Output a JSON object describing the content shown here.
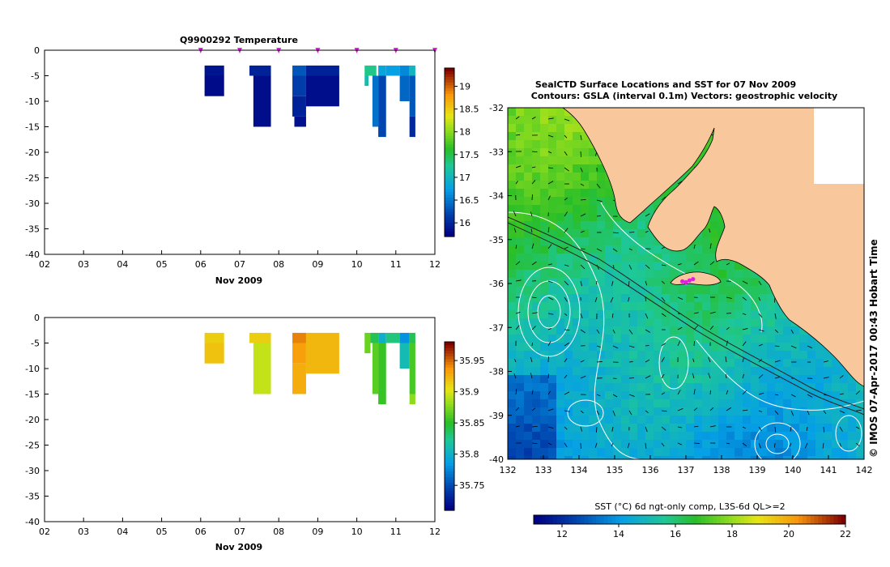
{
  "chart_data": [
    {
      "type": "heatmap",
      "title": "Q9900292  Temperature",
      "xlabel": "Nov 2009",
      "ylabel": "",
      "xlim": [
        2,
        12
      ],
      "ylim": [
        -40,
        0
      ],
      "x_ticks": [
        "02",
        "03",
        "04",
        "05",
        "06",
        "07",
        "08",
        "09",
        "10",
        "11",
        "12"
      ],
      "y_ticks": [
        0,
        -5,
        -10,
        -15,
        -20,
        -25,
        -30,
        -35,
        -40
      ],
      "profile_times": [
        6.0,
        7.0,
        8.0,
        9.0,
        10.0,
        11.0,
        12.0
      ],
      "colorbar": {
        "min": 15.7,
        "max": 19.4,
        "ticks": [
          16,
          16.5,
          17,
          17.5,
          18,
          18.5,
          19
        ]
      },
      "cells": [
        {
          "t0": 6.1,
          "t1": 6.6,
          "d0": -3,
          "d1": -5,
          "v": 15.85
        },
        {
          "t0": 6.1,
          "t1": 6.6,
          "d0": -5,
          "d1": -9,
          "v": 15.78
        },
        {
          "t0": 7.25,
          "t1": 7.8,
          "d0": -3,
          "d1": -5,
          "v": 15.95
        },
        {
          "t0": 7.35,
          "t1": 7.8,
          "d0": -5,
          "d1": -15,
          "v": 15.8
        },
        {
          "t0": 8.35,
          "t1": 8.7,
          "d0": -3,
          "d1": -5,
          "v": 16.3
        },
        {
          "t0": 8.35,
          "t1": 8.7,
          "d0": -5,
          "d1": -9,
          "v": 16.15
        },
        {
          "t0": 8.35,
          "t1": 8.7,
          "d0": -9,
          "d1": -13,
          "v": 15.95
        },
        {
          "t0": 8.4,
          "t1": 8.7,
          "d0": -13,
          "d1": -15,
          "v": 15.82
        },
        {
          "t0": 8.7,
          "t1": 9.55,
          "d0": -3,
          "d1": -5,
          "v": 15.95
        },
        {
          "t0": 8.7,
          "t1": 9.55,
          "d0": -5,
          "d1": -11,
          "v": 15.8
        },
        {
          "t0": 10.2,
          "t1": 10.5,
          "d0": -3,
          "d1": -5,
          "v": 17.3
        },
        {
          "t0": 10.2,
          "t1": 10.3,
          "d0": -5,
          "d1": -7,
          "v": 17.1
        },
        {
          "t0": 10.4,
          "t1": 10.55,
          "d0": -5,
          "d1": -15,
          "v": 16.45
        },
        {
          "t0": 10.55,
          "t1": 10.75,
          "d0": -3,
          "d1": -5,
          "v": 16.8
        },
        {
          "t0": 10.55,
          "t1": 10.75,
          "d0": -5,
          "d1": -17,
          "v": 16.2
        },
        {
          "t0": 10.75,
          "t1": 11.1,
          "d0": -3,
          "d1": -5,
          "v": 16.75
        },
        {
          "t0": 11.1,
          "t1": 11.35,
          "d0": -3,
          "d1": -5,
          "v": 16.6
        },
        {
          "t0": 11.1,
          "t1": 11.35,
          "d0": -5,
          "d1": -10,
          "v": 16.4
        },
        {
          "t0": 11.35,
          "t1": 11.5,
          "d0": -3,
          "d1": -5,
          "v": 17.0
        },
        {
          "t0": 11.35,
          "t1": 11.5,
          "d0": -5,
          "d1": -13,
          "v": 16.3
        },
        {
          "t0": 11.35,
          "t1": 11.5,
          "d0": -13,
          "d1": -17,
          "v": 16.0
        }
      ]
    },
    {
      "type": "heatmap",
      "title": "",
      "xlabel": "Nov 2009",
      "ylabel": "",
      "xlim": [
        2,
        12
      ],
      "ylim": [
        -40,
        0
      ],
      "x_ticks": [
        "02",
        "03",
        "04",
        "05",
        "06",
        "07",
        "08",
        "09",
        "10",
        "11",
        "12"
      ],
      "y_ticks": [
        0,
        -5,
        -10,
        -15,
        -20,
        -25,
        -30,
        -35,
        -40
      ],
      "colorbar": {
        "min": 35.71,
        "max": 35.98,
        "ticks": [
          35.75,
          35.8,
          35.85,
          35.9,
          35.95
        ]
      },
      "cells": [
        {
          "t0": 6.1,
          "t1": 6.6,
          "d0": -3,
          "d1": -5,
          "v": 35.915
        },
        {
          "t0": 6.1,
          "t1": 6.6,
          "d0": -5,
          "d1": -9,
          "v": 35.92
        },
        {
          "t0": 7.25,
          "t1": 7.8,
          "d0": -3,
          "d1": -5,
          "v": 35.915
        },
        {
          "t0": 7.35,
          "t1": 7.8,
          "d0": -5,
          "d1": -15,
          "v": 35.895
        },
        {
          "t0": 8.35,
          "t1": 8.7,
          "d0": -3,
          "d1": -5,
          "v": 35.945
        },
        {
          "t0": 8.35,
          "t1": 8.7,
          "d0": -5,
          "d1": -9,
          "v": 35.935
        },
        {
          "t0": 8.35,
          "t1": 8.7,
          "d0": -9,
          "d1": -15,
          "v": 35.93
        },
        {
          "t0": 8.7,
          "t1": 9.55,
          "d0": -3,
          "d1": -11,
          "v": 35.925
        },
        {
          "t0": 10.2,
          "t1": 10.35,
          "d0": -3,
          "d1": -7,
          "v": 35.87
        },
        {
          "t0": 10.35,
          "t1": 10.55,
          "d0": -3,
          "d1": -5,
          "v": 35.84
        },
        {
          "t0": 10.4,
          "t1": 10.55,
          "d0": -5,
          "d1": -15,
          "v": 35.865
        },
        {
          "t0": 10.55,
          "t1": 10.75,
          "d0": -3,
          "d1": -5,
          "v": 35.8
        },
        {
          "t0": 10.55,
          "t1": 10.75,
          "d0": -5,
          "d1": -17,
          "v": 35.855
        },
        {
          "t0": 10.75,
          "t1": 11.1,
          "d0": -3,
          "d1": -5,
          "v": 35.83
        },
        {
          "t0": 11.1,
          "t1": 11.35,
          "d0": -3,
          "d1": -5,
          "v": 35.78
        },
        {
          "t0": 11.1,
          "t1": 11.35,
          "d0": -5,
          "d1": -10,
          "v": 35.81
        },
        {
          "t0": 11.35,
          "t1": 11.5,
          "d0": -3,
          "d1": -5,
          "v": 35.84
        },
        {
          "t0": 11.35,
          "t1": 11.5,
          "d0": -5,
          "d1": -15,
          "v": 35.86
        },
        {
          "t0": 11.35,
          "t1": 11.5,
          "d0": -15,
          "d1": -17,
          "v": 35.88
        }
      ]
    },
    {
      "type": "heatmap",
      "title": "SealCTD Surface Locations and SST for 07 Nov 2009",
      "subtitle": "Contours: GSLA (interval 0.1m) Vectors: geostrophic velocity",
      "xlabel": "",
      "ylabel": "",
      "xlim": [
        132,
        142
      ],
      "ylim": [
        -40,
        -32
      ],
      "x_ticks": [
        132,
        133,
        134,
        135,
        136,
        137,
        138,
        139,
        140,
        141,
        142
      ],
      "y_ticks": [
        -32,
        -33,
        -34,
        -35,
        -36,
        -37,
        -38,
        -39,
        -40
      ],
      "colorbar": {
        "min": 11,
        "max": 22,
        "ticks": [
          12,
          14,
          16,
          18,
          20,
          22
        ],
        "label": "SST (°C) 6d ngt-only comp, L3S-6d QL>=2"
      },
      "seal_positions": [
        [
          136.9,
          -35.95
        ],
        [
          137.0,
          -35.97
        ],
        [
          137.1,
          -35.93
        ],
        [
          137.2,
          -35.9
        ]
      ],
      "credit": "© IMOS 07-Apr-2017 00:43 Hobart Time"
    }
  ],
  "colors": {
    "land": "#f8c89c",
    "seal_marker": "#e01ce0",
    "coast": "#000000",
    "contour": "#ffffff",
    "vector": "#000000"
  }
}
